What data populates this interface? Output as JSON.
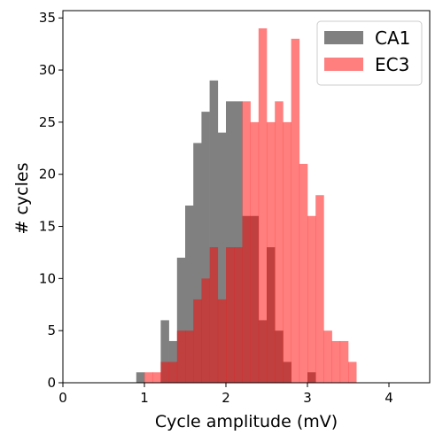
{
  "chart_data": {
    "type": "bar",
    "subtype": "histogram",
    "xlabel": "Cycle amplitude (mV)",
    "ylabel": "# cycles",
    "xlim": [
      0,
      4.5
    ],
    "ylim": [
      0,
      35.7
    ],
    "xticks": [
      0,
      1,
      2,
      3,
      4
    ],
    "yticks": [
      0,
      5,
      10,
      15,
      20,
      25,
      30,
      35
    ],
    "grid": false,
    "legend": {
      "placement": "top-right"
    },
    "series": [
      {
        "name": "CA1",
        "color": "#808080",
        "bin_width": 0.1,
        "bins": [
          {
            "x0": 0.9,
            "count": 1
          },
          {
            "x0": 1.0,
            "count": 0
          },
          {
            "x0": 1.1,
            "count": 0
          },
          {
            "x0": 1.2,
            "count": 6
          },
          {
            "x0": 1.3,
            "count": 4
          },
          {
            "x0": 1.4,
            "count": 12
          },
          {
            "x0": 1.5,
            "count": 17
          },
          {
            "x0": 1.6,
            "count": 23
          },
          {
            "x0": 1.7,
            "count": 26
          },
          {
            "x0": 1.8,
            "count": 29
          },
          {
            "x0": 1.9,
            "count": 24
          },
          {
            "x0": 2.0,
            "count": 27
          },
          {
            "x0": 2.1,
            "count": 27
          },
          {
            "x0": 2.2,
            "count": 16
          },
          {
            "x0": 2.3,
            "count": 16
          },
          {
            "x0": 2.4,
            "count": 6
          },
          {
            "x0": 2.5,
            "count": 13
          },
          {
            "x0": 2.6,
            "count": 5
          },
          {
            "x0": 2.7,
            "count": 2
          },
          {
            "x0": 2.8,
            "count": 0
          },
          {
            "x0": 2.9,
            "count": 0
          },
          {
            "x0": 3.0,
            "count": 1
          }
        ]
      },
      {
        "name": "EC3",
        "color": "#ff0000",
        "alpha": 0.5,
        "bin_width": 0.1,
        "bins": [
          {
            "x0": 1.0,
            "count": 1
          },
          {
            "x0": 1.1,
            "count": 1
          },
          {
            "x0": 1.2,
            "count": 2
          },
          {
            "x0": 1.3,
            "count": 2
          },
          {
            "x0": 1.4,
            "count": 5
          },
          {
            "x0": 1.5,
            "count": 5
          },
          {
            "x0": 1.6,
            "count": 8
          },
          {
            "x0": 1.7,
            "count": 10
          },
          {
            "x0": 1.8,
            "count": 13
          },
          {
            "x0": 1.9,
            "count": 8
          },
          {
            "x0": 2.0,
            "count": 13
          },
          {
            "x0": 2.1,
            "count": 13
          },
          {
            "x0": 2.2,
            "count": 27
          },
          {
            "x0": 2.3,
            "count": 25
          },
          {
            "x0": 2.4,
            "count": 34
          },
          {
            "x0": 2.5,
            "count": 25
          },
          {
            "x0": 2.6,
            "count": 27
          },
          {
            "x0": 2.7,
            "count": 25
          },
          {
            "x0": 2.8,
            "count": 33
          },
          {
            "x0": 2.9,
            "count": 21
          },
          {
            "x0": 3.0,
            "count": 16
          },
          {
            "x0": 3.1,
            "count": 18
          },
          {
            "x0": 3.2,
            "count": 5
          },
          {
            "x0": 3.3,
            "count": 4
          },
          {
            "x0": 3.4,
            "count": 4
          },
          {
            "x0": 3.5,
            "count": 2
          }
        ]
      }
    ]
  }
}
